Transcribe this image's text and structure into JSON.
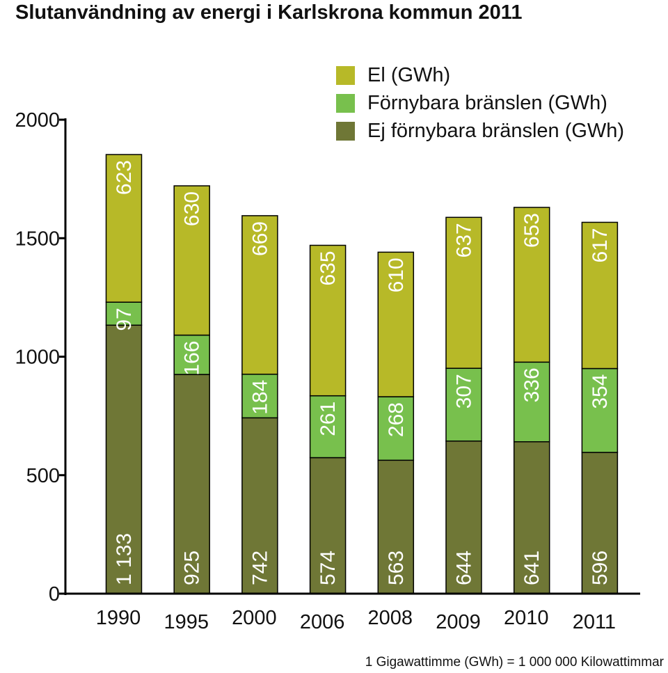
{
  "chart_data": {
    "type": "bar",
    "stacked": true,
    "title": "Slutanvändning av energi i Karlskrona kommun 2011",
    "categories": [
      "1990",
      "1995",
      "2000",
      "2006",
      "2008",
      "2009",
      "2010",
      "2011"
    ],
    "series": [
      {
        "name": "Ej förnybara bränslen (GWh)",
        "color": "#6f7736",
        "values": [
          1133,
          925,
          742,
          574,
          563,
          644,
          641,
          596
        ],
        "labels": [
          "1 133",
          "925",
          "742",
          "574",
          "563",
          "644",
          "641",
          "596"
        ]
      },
      {
        "name": "Förnybara bränslen (GWh)",
        "color": "#78c04d",
        "values": [
          97,
          166,
          184,
          261,
          268,
          307,
          336,
          354
        ],
        "labels": [
          "97",
          "166",
          "184",
          "261",
          "268",
          "307",
          "336",
          "354"
        ]
      },
      {
        "name": "El (GWh)",
        "color": "#b7b928",
        "values": [
          623,
          630,
          669,
          635,
          610,
          637,
          653,
          617
        ],
        "labels": [
          "623",
          "630",
          "669",
          "635",
          "610",
          "637",
          "653",
          "617"
        ]
      }
    ],
    "legend_order": [
      "El (GWh)",
      "Förnybara bränslen (GWh)",
      "Ej förnybara bränslen (GWh)"
    ],
    "yticks": [
      "0",
      "500",
      "1000",
      "1500",
      "2000"
    ],
    "ylim": [
      0,
      2000
    ],
    "xlabel": "",
    "ylabel": "",
    "legend_position": "top-right",
    "grid": false
  },
  "footnote": "1 Gigawattimme (GWh) = 1 000 000 Kilowattimmar"
}
